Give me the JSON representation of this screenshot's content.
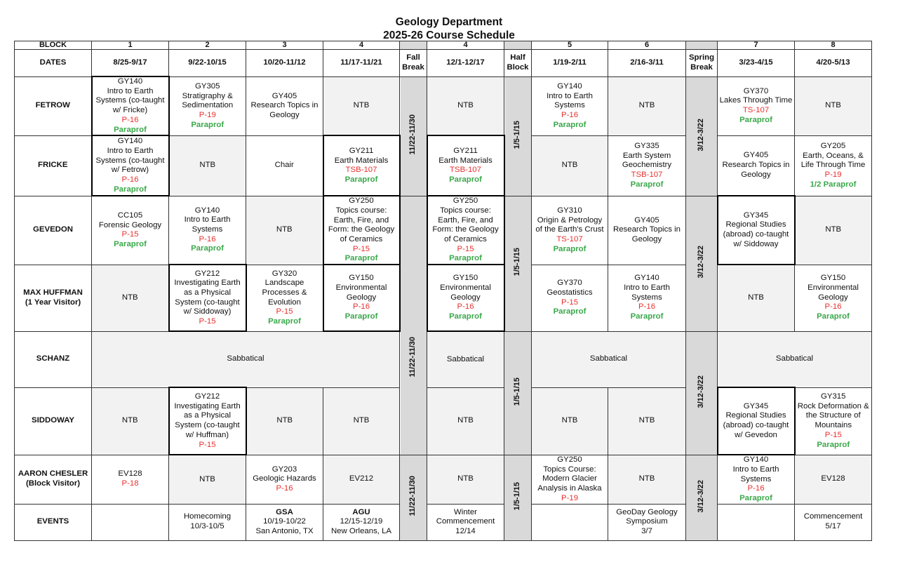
{
  "title": {
    "line1": "Geology Department",
    "line2": "2025-26 Course Schedule"
  },
  "colors": {
    "room": "#e8312f",
    "paraprof": "#3aa84a",
    "ntb_shade": "#f2f2f2",
    "break_shade": "#d9d9d9"
  },
  "header": {
    "block_label": "BLOCK",
    "dates_label": "DATES",
    "blocks": [
      "1",
      "2",
      "3",
      "4",
      "",
      "4",
      "",
      "5",
      "6",
      "",
      "7",
      "8"
    ],
    "dates": [
      "8/25-9/17",
      "9/22-10/15",
      "10/20-11/12",
      "11/17-11/21",
      "Fall Break",
      "12/1-12/17",
      "Half Block",
      "1/19-2/11",
      "2/16-3/11",
      "Spring Break",
      "3/23-4/15",
      "4/20-5/13"
    ]
  },
  "breaks": {
    "fall": [
      "11/22-11/30",
      "11/22-11/30",
      "11/22-11/30"
    ],
    "half": [
      "1/5-1/15",
      "1/5-1/15",
      "1/5-1/15",
      "1/5-1/15"
    ],
    "spring": [
      "3/12-3/22",
      "3/12-3/22",
      "3/12-3/22",
      "3/12-3/22"
    ]
  },
  "rows": [
    {
      "name": [
        "FETROW"
      ],
      "cells": [
        {
          "thick": true,
          "lines": [
            {
              "t": "GY140"
            },
            {
              "t": "Intro to Earth Systems (co-taught w/ Fricke)"
            },
            {
              "t": "P-16",
              "k": "room"
            },
            {
              "t": "Paraprof",
              "k": "para"
            }
          ]
        },
        {
          "lines": [
            {
              "t": "GY305"
            },
            {
              "t": "Stratigraphy & Sedimentation"
            },
            {
              "t": "P-19",
              "k": "room"
            },
            {
              "t": "Paraprof",
              "k": "para"
            }
          ]
        },
        {
          "lines": [
            {
              "t": "GY405"
            },
            {
              "t": "Research Topics in Geology"
            }
          ]
        },
        {
          "shade": true,
          "lines": [
            {
              "t": "NTB"
            }
          ]
        },
        {
          "shade": true,
          "lines": [
            {
              "t": "NTB"
            }
          ]
        },
        {
          "lines": [
            {
              "t": "GY140"
            },
            {
              "t": "Intro to Earth Systems"
            },
            {
              "t": "P-16",
              "k": "room"
            },
            {
              "t": "Paraprof",
              "k": "para"
            }
          ]
        },
        {
          "shade": true,
          "lines": [
            {
              "t": "NTB"
            }
          ]
        },
        {
          "lines": [
            {
              "t": "GY370"
            },
            {
              "t": "Lakes Through Time"
            },
            {
              "t": "TS-107",
              "k": "room"
            },
            {
              "t": "Paraprof",
              "k": "para"
            }
          ]
        },
        {
          "shade": true,
          "lines": [
            {
              "t": "NTB"
            }
          ]
        }
      ]
    },
    {
      "name": [
        "FRICKE"
      ],
      "cells": [
        {
          "thick": true,
          "lines": [
            {
              "t": "GY140"
            },
            {
              "t": "Intro to Earth Systems (co-taught w/ Fetrow)"
            },
            {
              "t": "P-16",
              "k": "room"
            },
            {
              "t": "Paraprof",
              "k": "para"
            }
          ]
        },
        {
          "shade": true,
          "lines": [
            {
              "t": "NTB"
            }
          ]
        },
        {
          "lines": [
            {
              "t": "Chair"
            }
          ]
        },
        {
          "thick": true,
          "lines": [
            {
              "t": "GY211"
            },
            {
              "t": "Earth Materials"
            },
            {
              "t": "TSB-107",
              "k": "room"
            },
            {
              "t": "Paraprof",
              "k": "para"
            }
          ]
        },
        {
          "thick": true,
          "lines": [
            {
              "t": "GY211"
            },
            {
              "t": "Earth Materials"
            },
            {
              "t": "TSB-107",
              "k": "room"
            },
            {
              "t": "Paraprof",
              "k": "para"
            }
          ]
        },
        {
          "shade": true,
          "lines": [
            {
              "t": "NTB"
            }
          ]
        },
        {
          "lines": [
            {
              "t": "GY335"
            },
            {
              "t": "Earth System Geochemistry"
            },
            {
              "t": "TSB-107",
              "k": "room"
            },
            {
              "t": "Paraprof",
              "k": "para"
            }
          ]
        },
        {
          "lines": [
            {
              "t": "GY405"
            },
            {
              "t": "Research Topics in Geology"
            }
          ]
        },
        {
          "lines": [
            {
              "t": "GY205"
            },
            {
              "t": "Earth, Oceans, & Life Through Time"
            },
            {
              "t": "P-19",
              "k": "room"
            },
            {
              "t": "1/2 Paraprof",
              "k": "para"
            }
          ]
        }
      ]
    },
    {
      "name": [
        "GEVEDON"
      ],
      "cells": [
        {
          "lines": [
            {
              "t": "CC105"
            },
            {
              "t": "Forensic Geology"
            },
            {
              "t": "P-15",
              "k": "room"
            },
            {
              "t": "Paraprof",
              "k": "para"
            }
          ]
        },
        {
          "lines": [
            {
              "t": "GY140"
            },
            {
              "t": "Intro to Earth Systems"
            },
            {
              "t": "P-16",
              "k": "room"
            },
            {
              "t": "Paraprof",
              "k": "para"
            }
          ]
        },
        {
          "shade": true,
          "lines": [
            {
              "t": "NTB"
            }
          ]
        },
        {
          "thick": true,
          "lines": [
            {
              "t": "GY250"
            },
            {
              "t": "Topics course: Earth, Fire, and Form: the Geology of Ceramics"
            },
            {
              "t": "P-15",
              "k": "room"
            },
            {
              "t": "Paraprof",
              "k": "para"
            }
          ]
        },
        {
          "thick": true,
          "lines": [
            {
              "t": "GY250"
            },
            {
              "t": "Topics course: Earth, Fire, and Form: the Geology of Ceramics"
            },
            {
              "t": "P-15",
              "k": "room"
            },
            {
              "t": "Paraprof",
              "k": "para"
            }
          ]
        },
        {
          "lines": [
            {
              "t": "GY310"
            },
            {
              "t": "Origin & Petrology of the Earth's Crust"
            },
            {
              "t": "TS-107",
              "k": "room"
            },
            {
              "t": "Paraprof",
              "k": "para"
            }
          ]
        },
        {
          "lines": [
            {
              "t": "GY405"
            },
            {
              "t": "Research Topics in Geology"
            }
          ]
        },
        {
          "thick": true,
          "lines": [
            {
              "t": "GY345"
            },
            {
              "t": "Regional Studies (abroad) co-taught w/ Siddoway"
            }
          ]
        },
        {
          "shade": true,
          "lines": [
            {
              "t": "NTB"
            }
          ]
        }
      ]
    },
    {
      "name": [
        "MAX HUFFMAN",
        "(1 Year Visitor)"
      ],
      "cells": [
        {
          "shade": true,
          "lines": [
            {
              "t": "NTB"
            }
          ]
        },
        {
          "thick": true,
          "lines": [
            {
              "t": "GY212"
            },
            {
              "t": "Investigating Earth as a Physical System (co-taught w/ Siddoway)"
            },
            {
              "t": "P-15",
              "k": "room"
            }
          ]
        },
        {
          "lines": [
            {
              "t": "GY320"
            },
            {
              "t": "Landscape Processes & Evolution"
            },
            {
              "t": "P-15",
              "k": "room"
            },
            {
              "t": "Paraprof",
              "k": "para"
            }
          ]
        },
        {
          "thick": true,
          "lines": [
            {
              "t": "GY150"
            },
            {
              "t": "Environmental Geology"
            },
            {
              "t": "P-16",
              "k": "room"
            },
            {
              "t": "Paraprof",
              "k": "para"
            }
          ]
        },
        {
          "thick": true,
          "lines": [
            {
              "t": "GY150"
            },
            {
              "t": "Environmental Geology"
            },
            {
              "t": "P-16",
              "k": "room"
            },
            {
              "t": "Paraprof",
              "k": "para"
            }
          ]
        },
        {
          "lines": [
            {
              "t": "GY370"
            },
            {
              "t": "Geostatistics"
            },
            {
              "t": "P-15",
              "k": "room"
            },
            {
              "t": "Paraprof",
              "k": "para"
            }
          ]
        },
        {
          "lines": [
            {
              "t": "GY140"
            },
            {
              "t": "Intro to Earth Systems"
            },
            {
              "t": "P-16",
              "k": "room"
            },
            {
              "t": "Paraprof",
              "k": "para"
            }
          ]
        },
        {
          "shade": true,
          "lines": [
            {
              "t": "NTB"
            }
          ]
        },
        {
          "lines": [
            {
              "t": "GY150"
            },
            {
              "t": "Environmental Geology"
            },
            {
              "t": "P-16",
              "k": "room"
            },
            {
              "t": "Paraprof",
              "k": "para"
            }
          ]
        }
      ]
    },
    {
      "name": [
        "SCHANZ"
      ],
      "cells": [
        {
          "shade": true,
          "span": 4,
          "lines": [
            {
              "t": "Sabbatical"
            }
          ]
        },
        {
          "shade": true,
          "lines": [
            {
              "t": "Sabbatical"
            }
          ]
        },
        {
          "shade": true,
          "span": 2,
          "lines": [
            {
              "t": "Sabbatical"
            }
          ]
        },
        {
          "shade": true,
          "span": 2,
          "lines": [
            {
              "t": "Sabbatical"
            }
          ]
        }
      ]
    },
    {
      "name": [
        "SIDDOWAY"
      ],
      "cells": [
        {
          "shade": true,
          "lines": [
            {
              "t": "NTB"
            }
          ]
        },
        {
          "thick": true,
          "lines": [
            {
              "t": "GY212"
            },
            {
              "t": "Investigating Earth as a Physical System (co-taught w/ Huffman)"
            },
            {
              "t": "P-15",
              "k": "room"
            }
          ]
        },
        {
          "shade": true,
          "lines": [
            {
              "t": "NTB"
            }
          ]
        },
        {
          "shade": true,
          "lines": [
            {
              "t": "NTB"
            }
          ]
        },
        {
          "shade": true,
          "lines": [
            {
              "t": "NTB"
            }
          ]
        },
        {
          "shade": true,
          "lines": [
            {
              "t": "NTB"
            }
          ]
        },
        {
          "shade": true,
          "lines": [
            {
              "t": "NTB"
            }
          ]
        },
        {
          "thick": true,
          "lines": [
            {
              "t": "GY345"
            },
            {
              "t": "Regional Studies (abroad) co-taught w/ Gevedon"
            }
          ]
        },
        {
          "lines": [
            {
              "t": "GY315"
            },
            {
              "t": "Rock Deformation & the Structure of Mountains"
            },
            {
              "t": "P-15",
              "k": "room"
            },
            {
              "t": "Paraprof",
              "k": "para"
            }
          ]
        }
      ]
    },
    {
      "name": [
        "AARON CHESLER",
        "(Block Visitor)"
      ],
      "cells": [
        {
          "lines": [
            {
              "t": "EV128"
            },
            {
              "t": "P-18",
              "k": "room"
            }
          ]
        },
        {
          "shade": true,
          "lines": [
            {
              "t": "NTB"
            }
          ]
        },
        {
          "lines": [
            {
              "t": "GY203"
            },
            {
              "t": "Geologic Hazards"
            },
            {
              "t": "P-16",
              "k": "room"
            }
          ]
        },
        {
          "shade": true,
          "lines": [
            {
              "t": "EV212"
            }
          ]
        },
        {
          "shade": true,
          "lines": [
            {
              "t": "NTB"
            }
          ]
        },
        {
          "lines": [
            {
              "t": "GY250"
            },
            {
              "t": "Topics Course: Modern Glacier Analysis in Alaska"
            },
            {
              "t": "P-19",
              "k": "room"
            }
          ]
        },
        {
          "shade": true,
          "lines": [
            {
              "t": "NTB"
            }
          ]
        },
        {
          "lines": [
            {
              "t": "GY140"
            },
            {
              "t": "Intro to Earth Systems"
            },
            {
              "t": "P-16",
              "k": "room"
            },
            {
              "t": "Paraprof",
              "k": "para"
            }
          ]
        },
        {
          "shade": true,
          "lines": [
            {
              "t": "EV128"
            }
          ]
        }
      ]
    },
    {
      "name": [
        "EVENTS"
      ],
      "cells": [
        {
          "lines": []
        },
        {
          "lines": [
            {
              "t": "Homecoming"
            },
            {
              "t": "10/3-10/5"
            }
          ]
        },
        {
          "lines": [
            {
              "t": "GSA",
              "k": "bold"
            },
            {
              "t": "10/19-10/22"
            },
            {
              "t": "San Antonio, TX"
            }
          ]
        },
        {
          "lines": [
            {
              "t": "AGU",
              "k": "bold"
            },
            {
              "t": "12/15-12/19"
            },
            {
              "t": "New Orleans, LA"
            }
          ]
        },
        {
          "lines": [
            {
              "t": "Winter Commencement"
            },
            {
              "t": "12/14"
            }
          ]
        },
        {
          "lines": []
        },
        {
          "lines": [
            {
              "t": "GeoDay Geology Symposium"
            },
            {
              "t": "3/7"
            }
          ]
        },
        {
          "lines": []
        },
        {
          "lines": [
            {
              "t": "Commencement"
            },
            {
              "t": "5/17"
            }
          ]
        }
      ]
    }
  ]
}
